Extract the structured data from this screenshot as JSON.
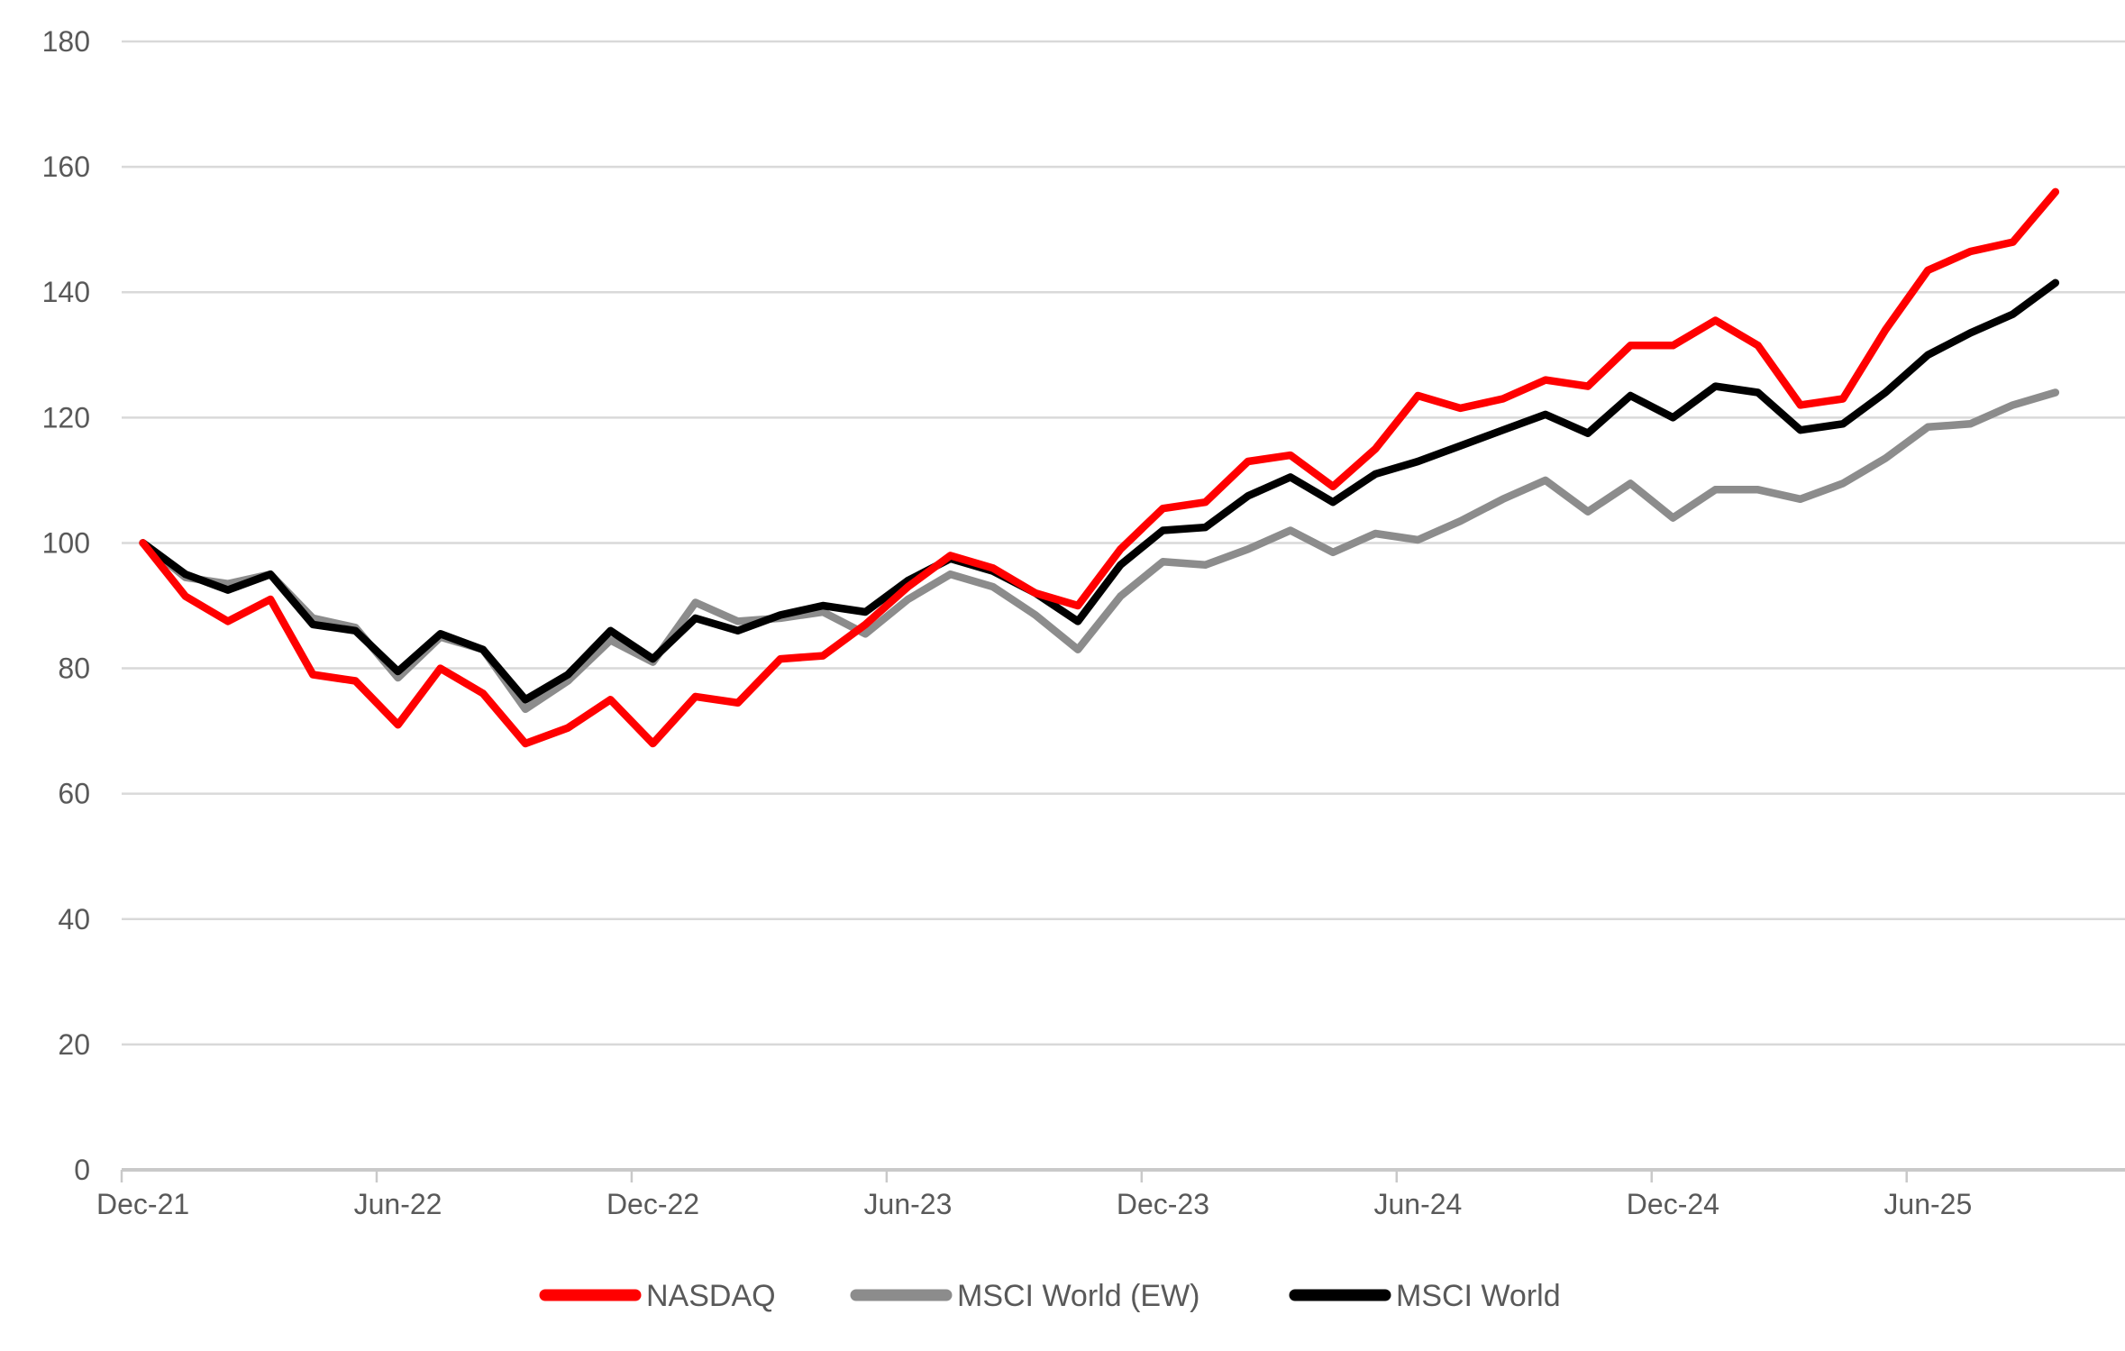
{
  "chart_data": {
    "type": "line",
    "title": "",
    "xlabel": "",
    "ylabel": "",
    "categories": [
      "Dec-21",
      "Jan-22",
      "Feb-22",
      "Mar-22",
      "Apr-22",
      "May-22",
      "Jun-22",
      "Jul-22",
      "Aug-22",
      "Sep-22",
      "Oct-22",
      "Nov-22",
      "Dec-22",
      "Jan-23",
      "Feb-23",
      "Mar-23",
      "Apr-23",
      "May-23",
      "Jun-23",
      "Jul-23",
      "Aug-23",
      "Sep-23",
      "Oct-23",
      "Nov-23",
      "Dec-23",
      "Jan-24",
      "Feb-24",
      "Mar-24",
      "Apr-24",
      "May-24",
      "Jun-24",
      "Jul-24",
      "Aug-24",
      "Sep-24",
      "Oct-24",
      "Nov-24",
      "Dec-24",
      "Jan-25",
      "Feb-25",
      "Mar-25",
      "Apr-25",
      "May-25",
      "Jun-25",
      "Jul-25",
      "Aug-25",
      "Sep-25"
    ],
    "x_tick_labels": [
      "Dec-21",
      "Jun-22",
      "Dec-22",
      "Jun-23",
      "Dec-23",
      "Jun-24",
      "Dec-24",
      "Jun-25"
    ],
    "x_tick_every": 6,
    "ylim": [
      0,
      180
    ],
    "y_step": 20,
    "y_tick_labels": [
      "0",
      "20",
      "40",
      "60",
      "80",
      "100",
      "120",
      "140",
      "160",
      "180"
    ],
    "grid": true,
    "legend_position": "bottom",
    "series": [
      {
        "name": "NASDAQ",
        "color": "#FF0000",
        "z": 3,
        "values": [
          100,
          91.5,
          87.5,
          91,
          79,
          78,
          71,
          80,
          76,
          68,
          70.5,
          75,
          68,
          75.5,
          74.5,
          81.5,
          82,
          87,
          93,
          98,
          96,
          92,
          90,
          99,
          105.5,
          106.5,
          113,
          114,
          109,
          115,
          123.5,
          121.5,
          123,
          126,
          125,
          131.5,
          131.5,
          135.5,
          131.5,
          122,
          123,
          134,
          143.5,
          146.5,
          148,
          156
        ]
      },
      {
        "name": "MSCI World (EW)",
        "color": "#8C8C8C",
        "z": 1,
        "values": [
          100,
          94.5,
          93.5,
          95,
          88,
          86.5,
          78.5,
          85,
          83,
          73.5,
          78,
          84.5,
          81,
          90.5,
          87.5,
          88,
          89,
          85.5,
          91,
          95,
          93,
          88.5,
          83,
          91.5,
          97,
          96.5,
          99,
          102,
          98.5,
          101.5,
          100.5,
          103.5,
          107,
          110,
          105,
          109.5,
          104,
          108.5,
          108.5,
          107,
          109.5,
          113.5,
          118.5,
          119,
          122,
          124
        ]
      },
      {
        "name": "MSCI World",
        "color": "#000000",
        "z": 2,
        "values": [
          100,
          95,
          92.5,
          95,
          87,
          86,
          79.5,
          85.5,
          83,
          75,
          79,
          86,
          81.5,
          88,
          86,
          88.5,
          90,
          89,
          94,
          97.5,
          95.5,
          92,
          87.5,
          96.5,
          102,
          102.5,
          107.5,
          110.5,
          106.5,
          111,
          113,
          115.5,
          118,
          120.5,
          117.5,
          123.5,
          120,
          125,
          124,
          118,
          119,
          124,
          130,
          133.5,
          136.5,
          141.5
        ]
      }
    ]
  },
  "colors": {
    "background": "#FFFFFF",
    "gridline": "#D9D9D9",
    "axis_line": "#C9C9C9",
    "tick": "#C9C9C9",
    "label_text": "#595959",
    "legend_text": "#595959"
  }
}
